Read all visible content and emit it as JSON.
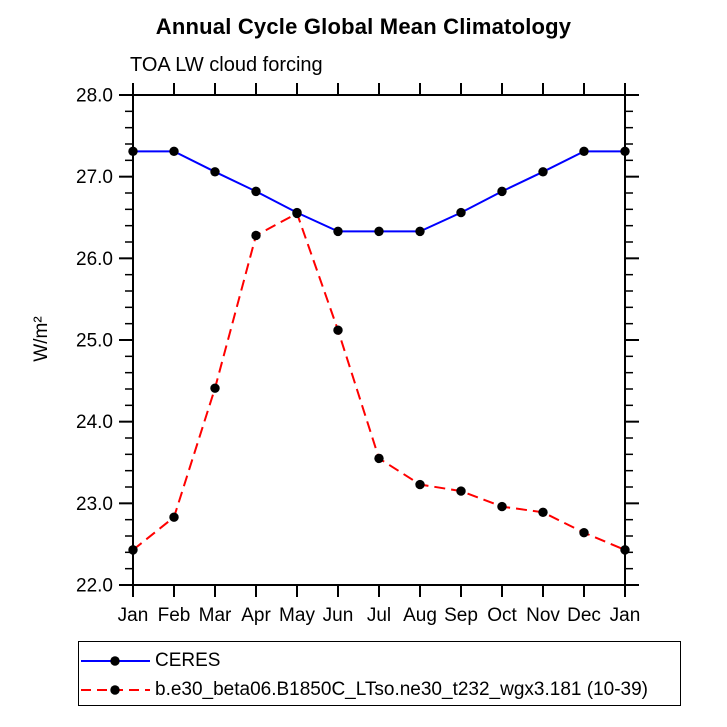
{
  "chart_data": {
    "type": "line",
    "title": "Annual Cycle Global Mean Climatology",
    "subtitle": "TOA LW cloud forcing",
    "xlabel": "",
    "ylabel": "W/m²",
    "categories": [
      "Jan",
      "Feb",
      "Mar",
      "Apr",
      "May",
      "Jun",
      "Jul",
      "Aug",
      "Sep",
      "Oct",
      "Nov",
      "Dec",
      "Jan"
    ],
    "ylim": [
      22.0,
      28.0
    ],
    "y_major_step": 1.0,
    "y_minor_step": 0.2,
    "y_tick_labels": [
      "22.0",
      "23.0",
      "24.0",
      "25.0",
      "26.0",
      "27.0",
      "28.0"
    ],
    "grid": false,
    "legend_position": "below-plot-left",
    "axis_color": "#000000",
    "marker": "filled-circle",
    "marker_color": "#000000",
    "series": [
      {
        "name": "CERES",
        "color": "#0000ff",
        "line_style": "solid",
        "values": [
          27.31,
          27.31,
          27.06,
          26.82,
          26.56,
          26.33,
          26.33,
          26.33,
          26.56,
          26.82,
          27.06,
          27.31,
          27.31
        ]
      },
      {
        "name": "b.e30_beta06.B1850C_LTso.ne30_t232_wgx3.181 (10-39)",
        "color": "#ff0000",
        "line_style": "dashed",
        "values": [
          22.43,
          22.83,
          24.41,
          26.28,
          26.55,
          25.12,
          23.55,
          23.23,
          23.15,
          22.96,
          22.89,
          22.64,
          22.43
        ]
      }
    ]
  }
}
